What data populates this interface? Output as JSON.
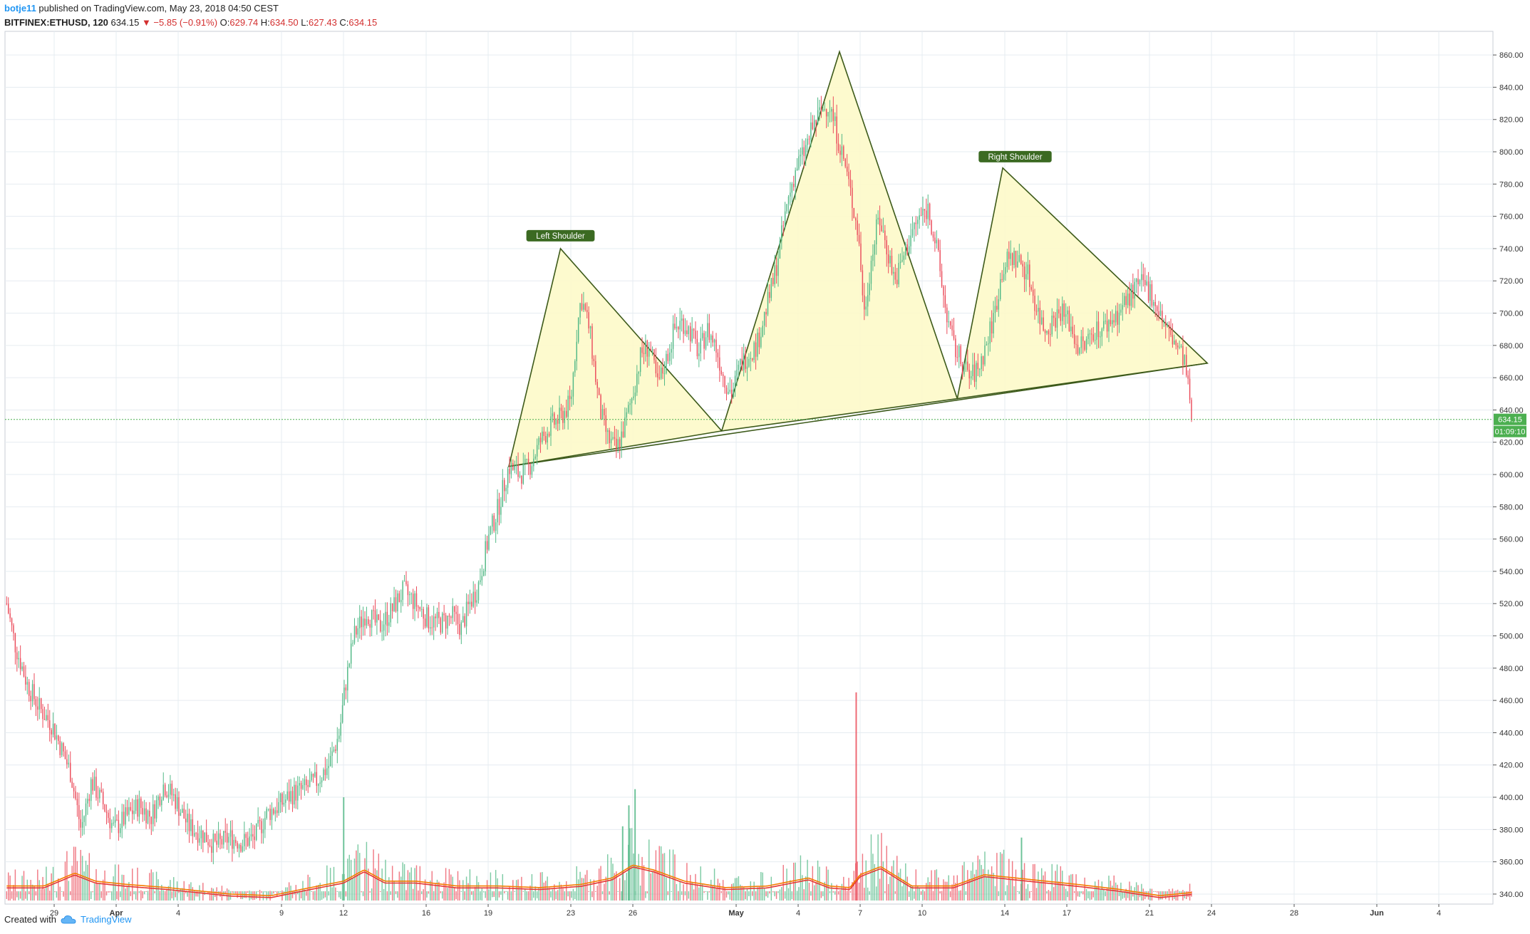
{
  "header": {
    "author": "botje11",
    "published": "published on TradingView.com, May 23, 2018 04:50 CEST",
    "symbol": "BITFINEX:ETHUSD, 120",
    "last": "634.15",
    "change": "▼ −5.85 (−0.91%)",
    "open_label": "O:",
    "open": "629.74",
    "high_label": "H:",
    "high": "634.50",
    "low_label": "L:",
    "low": "627.43",
    "close_label": "C:",
    "close": "634.15"
  },
  "footer": {
    "created_with": "Created with",
    "brand": "TradingView"
  },
  "colors": {
    "up": "#53b987",
    "down": "#eb4d5c",
    "pattern_fill": "#fdf9c9",
    "pattern_stroke": "#3d5a1a",
    "label_bg": "#3b6a22",
    "ma_orange": "#f57c00",
    "ma_red": "#e53935",
    "grid": "#e6ecf1",
    "price_tag": "#4caf50"
  },
  "chart_data": {
    "type": "candlestick",
    "symbol": "BITFINEX:ETHUSD",
    "interval": "120",
    "ylim": [
      330,
      864
    ],
    "y_ticks": [
      "340.00",
      "360.00",
      "380.00",
      "400.00",
      "420.00",
      "440.00",
      "460.00",
      "480.00",
      "500.00",
      "520.00",
      "540.00",
      "560.00",
      "580.00",
      "600.00",
      "620.00",
      "640.00",
      "660.00",
      "680.00",
      "700.00",
      "720.00",
      "740.00",
      "760.00",
      "780.00",
      "800.00",
      "820.00",
      "840.00",
      "860.00"
    ],
    "x_ticks": [
      {
        "label": "29",
        "t": 5.5
      },
      {
        "label": "Apr",
        "t": 8.5,
        "bold": true
      },
      {
        "label": "4",
        "t": 11.5
      },
      {
        "label": "9",
        "t": 16.5
      },
      {
        "label": "12",
        "t": 19.5
      },
      {
        "label": "16",
        "t": 23.5
      },
      {
        "label": "19",
        "t": 26.5
      },
      {
        "label": "23",
        "t": 30.5
      },
      {
        "label": "26",
        "t": 33.5
      },
      {
        "label": "May",
        "t": 38.5,
        "bold": true
      },
      {
        "label": "4",
        "t": 41.5
      },
      {
        "label": "7",
        "t": 44.5
      },
      {
        "label": "10",
        "t": 47.5
      },
      {
        "label": "14",
        "t": 51.5
      },
      {
        "label": "17",
        "t": 54.5
      },
      {
        "label": "21",
        "t": 58.5
      },
      {
        "label": "24",
        "t": 61.5
      },
      {
        "label": "28",
        "t": 65.5
      },
      {
        "label": "Jun",
        "t": 69.5,
        "bold": true
      },
      {
        "label": "4",
        "t": 72.5
      }
    ],
    "close_anchors": [
      [
        3.2,
        520
      ],
      [
        3.6,
        495
      ],
      [
        4.2,
        470
      ],
      [
        4.8,
        455
      ],
      [
        5.4,
        445
      ],
      [
        6.3,
        415
      ],
      [
        6.8,
        380
      ],
      [
        7.3,
        410
      ],
      [
        7.9,
        395
      ],
      [
        8.4,
        380
      ],
      [
        9.0,
        388
      ],
      [
        9.6,
        395
      ],
      [
        10.2,
        388
      ],
      [
        10.8,
        408
      ],
      [
        11.3,
        400
      ],
      [
        12.0,
        382
      ],
      [
        12.7,
        377
      ],
      [
        13.3,
        370
      ],
      [
        14.0,
        375
      ],
      [
        14.6,
        372
      ],
      [
        15.2,
        375
      ],
      [
        15.8,
        390
      ],
      [
        16.4,
        395
      ],
      [
        17.0,
        402
      ],
      [
        17.6,
        405
      ],
      [
        18.2,
        410
      ],
      [
        18.8,
        420
      ],
      [
        19.3,
        440
      ],
      [
        19.6,
        470
      ],
      [
        20.0,
        500
      ],
      [
        20.6,
        515
      ],
      [
        21.2,
        505
      ],
      [
        21.8,
        515
      ],
      [
        22.4,
        528
      ],
      [
        23.0,
        520
      ],
      [
        23.6,
        510
      ],
      [
        24.2,
        508
      ],
      [
        24.8,
        512
      ],
      [
        25.2,
        505
      ],
      [
        25.6,
        520
      ],
      [
        26.0,
        530
      ],
      [
        26.5,
        560
      ],
      [
        27.0,
        580
      ],
      [
        27.5,
        605
      ],
      [
        28.0,
        600
      ],
      [
        28.5,
        605
      ],
      [
        29.0,
        620
      ],
      [
        29.5,
        630
      ],
      [
        30.0,
        635
      ],
      [
        30.5,
        645
      ],
      [
        30.8,
        690
      ],
      [
        31.0,
        710
      ],
      [
        31.4,
        690
      ],
      [
        31.9,
        640
      ],
      [
        32.3,
        622
      ],
      [
        32.7,
        615
      ],
      [
        33.1,
        630
      ],
      [
        33.5,
        650
      ],
      [
        33.9,
        675
      ],
      [
        34.3,
        680
      ],
      [
        34.7,
        655
      ],
      [
        35.1,
        670
      ],
      [
        35.5,
        690
      ],
      [
        35.9,
        695
      ],
      [
        36.3,
        688
      ],
      [
        36.7,
        675
      ],
      [
        37.1,
        690
      ],
      [
        37.5,
        680
      ],
      [
        37.9,
        660
      ],
      [
        38.3,
        650
      ],
      [
        38.7,
        668
      ],
      [
        39.1,
        675
      ],
      [
        39.5,
        680
      ],
      [
        39.9,
        700
      ],
      [
        40.3,
        720
      ],
      [
        40.6,
        740
      ],
      [
        41.0,
        770
      ],
      [
        41.4,
        790
      ],
      [
        41.8,
        800
      ],
      [
        42.2,
        815
      ],
      [
        42.6,
        825
      ],
      [
        43.0,
        830
      ],
      [
        43.4,
        810
      ],
      [
        43.8,
        790
      ],
      [
        44.1,
        770
      ],
      [
        44.4,
        750
      ],
      [
        44.7,
        700
      ],
      [
        45.0,
        730
      ],
      [
        45.4,
        760
      ],
      [
        45.8,
        740
      ],
      [
        46.2,
        720
      ],
      [
        46.6,
        735
      ],
      [
        47.0,
        750
      ],
      [
        47.4,
        760
      ],
      [
        47.8,
        765
      ],
      [
        48.2,
        740
      ],
      [
        48.6,
        705
      ],
      [
        49.0,
        680
      ],
      [
        49.4,
        670
      ],
      [
        49.8,
        660
      ],
      [
        50.2,
        665
      ],
      [
        50.6,
        680
      ],
      [
        51.0,
        700
      ],
      [
        51.4,
        728
      ],
      [
        51.8,
        735
      ],
      [
        52.2,
        732
      ],
      [
        52.6,
        725
      ],
      [
        53.0,
        705
      ],
      [
        53.4,
        690
      ],
      [
        53.8,
        695
      ],
      [
        54.2,
        702
      ],
      [
        54.6,
        695
      ],
      [
        55.0,
        680
      ],
      [
        55.4,
        680
      ],
      [
        55.8,
        690
      ],
      [
        56.2,
        690
      ],
      [
        56.6,
        695
      ],
      [
        57.0,
        700
      ],
      [
        57.4,
        708
      ],
      [
        57.8,
        715
      ],
      [
        58.2,
        718
      ],
      [
        58.6,
        712
      ],
      [
        59.0,
        700
      ],
      [
        59.4,
        688
      ],
      [
        59.8,
        680
      ],
      [
        60.2,
        670
      ],
      [
        60.4,
        650
      ],
      [
        60.6,
        634.15
      ]
    ],
    "volume_anchors": [
      [
        3.2,
        345
      ],
      [
        5.0,
        345
      ],
      [
        6.5,
        353
      ],
      [
        7.5,
        348
      ],
      [
        9.0,
        346
      ],
      [
        11.0,
        344
      ],
      [
        14.0,
        340
      ],
      [
        16.0,
        339
      ],
      [
        17.5,
        343
      ],
      [
        19.5,
        348
      ],
      [
        20.5,
        355
      ],
      [
        21.5,
        348
      ],
      [
        23.0,
        348
      ],
      [
        25.0,
        345
      ],
      [
        27.0,
        345
      ],
      [
        29.0,
        344
      ],
      [
        31.0,
        346
      ],
      [
        32.5,
        350
      ],
      [
        33.5,
        358
      ],
      [
        34.5,
        355
      ],
      [
        36.0,
        348
      ],
      [
        38.0,
        344
      ],
      [
        40.0,
        345
      ],
      [
        42.0,
        350
      ],
      [
        43.0,
        345
      ],
      [
        44.0,
        344
      ],
      [
        44.5,
        352
      ],
      [
        45.5,
        357
      ],
      [
        47.0,
        345
      ],
      [
        49.0,
        345
      ],
      [
        50.5,
        352
      ],
      [
        52.0,
        350
      ],
      [
        53.5,
        348
      ],
      [
        55.0,
        346
      ],
      [
        57.0,
        343
      ],
      [
        59.0,
        339
      ],
      [
        60.6,
        341
      ]
    ],
    "volume_spikes": [
      {
        "t": 44.3,
        "top": 465
      },
      {
        "t": 33.6,
        "top": 405
      },
      {
        "t": 33.3,
        "top": 395
      },
      {
        "t": 19.5,
        "top": 400
      },
      {
        "t": 52.3,
        "top": 375
      },
      {
        "t": 33.0,
        "top": 382
      }
    ],
    "current_price": "634.15",
    "countdown": "01:09:10",
    "annotations": [
      {
        "text": "Left Shoulder",
        "t": 30.0,
        "y": 748
      },
      {
        "text": "Right Shoulder",
        "t": 52.0,
        "y": 797
      }
    ],
    "pattern_triangles": [
      [
        [
          27.5,
          605
        ],
        [
          30.0,
          740
        ],
        [
          37.8,
          627
        ]
      ],
      [
        [
          37.8,
          627
        ],
        [
          43.5,
          862
        ],
        [
          49.2,
          647
        ]
      ],
      [
        [
          49.2,
          647
        ],
        [
          51.4,
          790
        ],
        [
          61.3,
          669
        ]
      ]
    ],
    "neckline": [
      [
        27.5,
        605
      ],
      [
        61.3,
        669
      ]
    ],
    "ma_lines": [
      "orange",
      "red"
    ]
  }
}
